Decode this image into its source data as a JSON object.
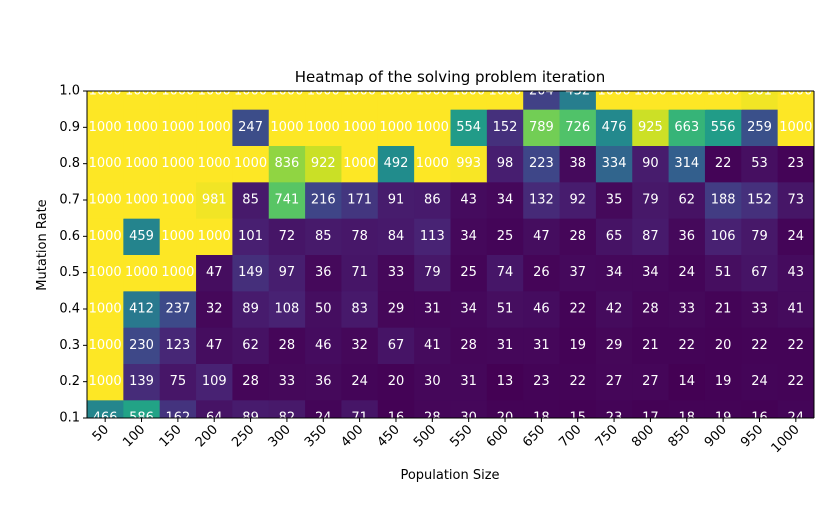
{
  "chart_data": {
    "type": "heatmap",
    "title": "Heatmap of the solving problem iteration",
    "xlabel": "Population Size",
    "ylabel": "Mutation Rate",
    "x_categories": [
      "50",
      "100",
      "150",
      "200",
      "250",
      "300",
      "350",
      "400",
      "450",
      "500",
      "550",
      "600",
      "650",
      "700",
      "750",
      "800",
      "850",
      "900",
      "950",
      "1000"
    ],
    "y_ticks": [
      "0.1",
      "0.2",
      "0.3",
      "0.4",
      "0.5",
      "0.6",
      "0.7",
      "0.8",
      "0.9",
      "1.0"
    ],
    "row_labels_bottom_to_top": [
      "0.1",
      "0.2",
      "0.3",
      "0.4",
      "0.5",
      "0.6",
      "0.7",
      "0.8",
      "0.9",
      "1.0"
    ],
    "values": [
      [
        466,
        586,
        162,
        64,
        89,
        82,
        24,
        71,
        16,
        28,
        30,
        20,
        18,
        15,
        23,
        17,
        18,
        19,
        16,
        24
      ],
      [
        1000,
        139,
        75,
        109,
        28,
        33,
        36,
        24,
        20,
        30,
        31,
        13,
        23,
        22,
        27,
        27,
        14,
        19,
        24,
        22
      ],
      [
        1000,
        230,
        123,
        47,
        62,
        28,
        46,
        32,
        67,
        41,
        28,
        31,
        31,
        19,
        29,
        21,
        22,
        20,
        22,
        22
      ],
      [
        1000,
        412,
        237,
        32,
        89,
        108,
        50,
        83,
        29,
        31,
        34,
        51,
        46,
        22,
        42,
        28,
        33,
        21,
        33,
        41
      ],
      [
        1000,
        1000,
        1000,
        47,
        149,
        97,
        36,
        71,
        33,
        79,
        25,
        74,
        26,
        37,
        34,
        34,
        24,
        51,
        67,
        43
      ],
      [
        1000,
        459,
        1000,
        1000,
        101,
        72,
        85,
        78,
        84,
        113,
        34,
        25,
        47,
        28,
        65,
        87,
        36,
        106,
        79,
        24
      ],
      [
        1000,
        1000,
        1000,
        981,
        85,
        741,
        216,
        171,
        91,
        86,
        43,
        34,
        132,
        92,
        35,
        79,
        62,
        188,
        152,
        73
      ],
      [
        1000,
        1000,
        1000,
        1000,
        1000,
        836,
        922,
        1000,
        492,
        1000,
        993,
        98,
        223,
        38,
        334,
        90,
        314,
        22,
        53,
        23
      ],
      [
        1000,
        1000,
        1000,
        1000,
        247,
        1000,
        1000,
        1000,
        1000,
        1000,
        554,
        152,
        789,
        726,
        476,
        925,
        663,
        556,
        259,
        1000
      ],
      [
        1000,
        1000,
        1000,
        1000,
        1000,
        1000,
        1000,
        1000,
        1000,
        1000,
        1000,
        1000,
        204,
        432,
        1000,
        1000,
        1000,
        1000,
        981,
        1000
      ]
    ],
    "vmin": 13,
    "vmax": 1000,
    "colormap": "viridis",
    "text_color": "#ffffff",
    "grid": false
  }
}
